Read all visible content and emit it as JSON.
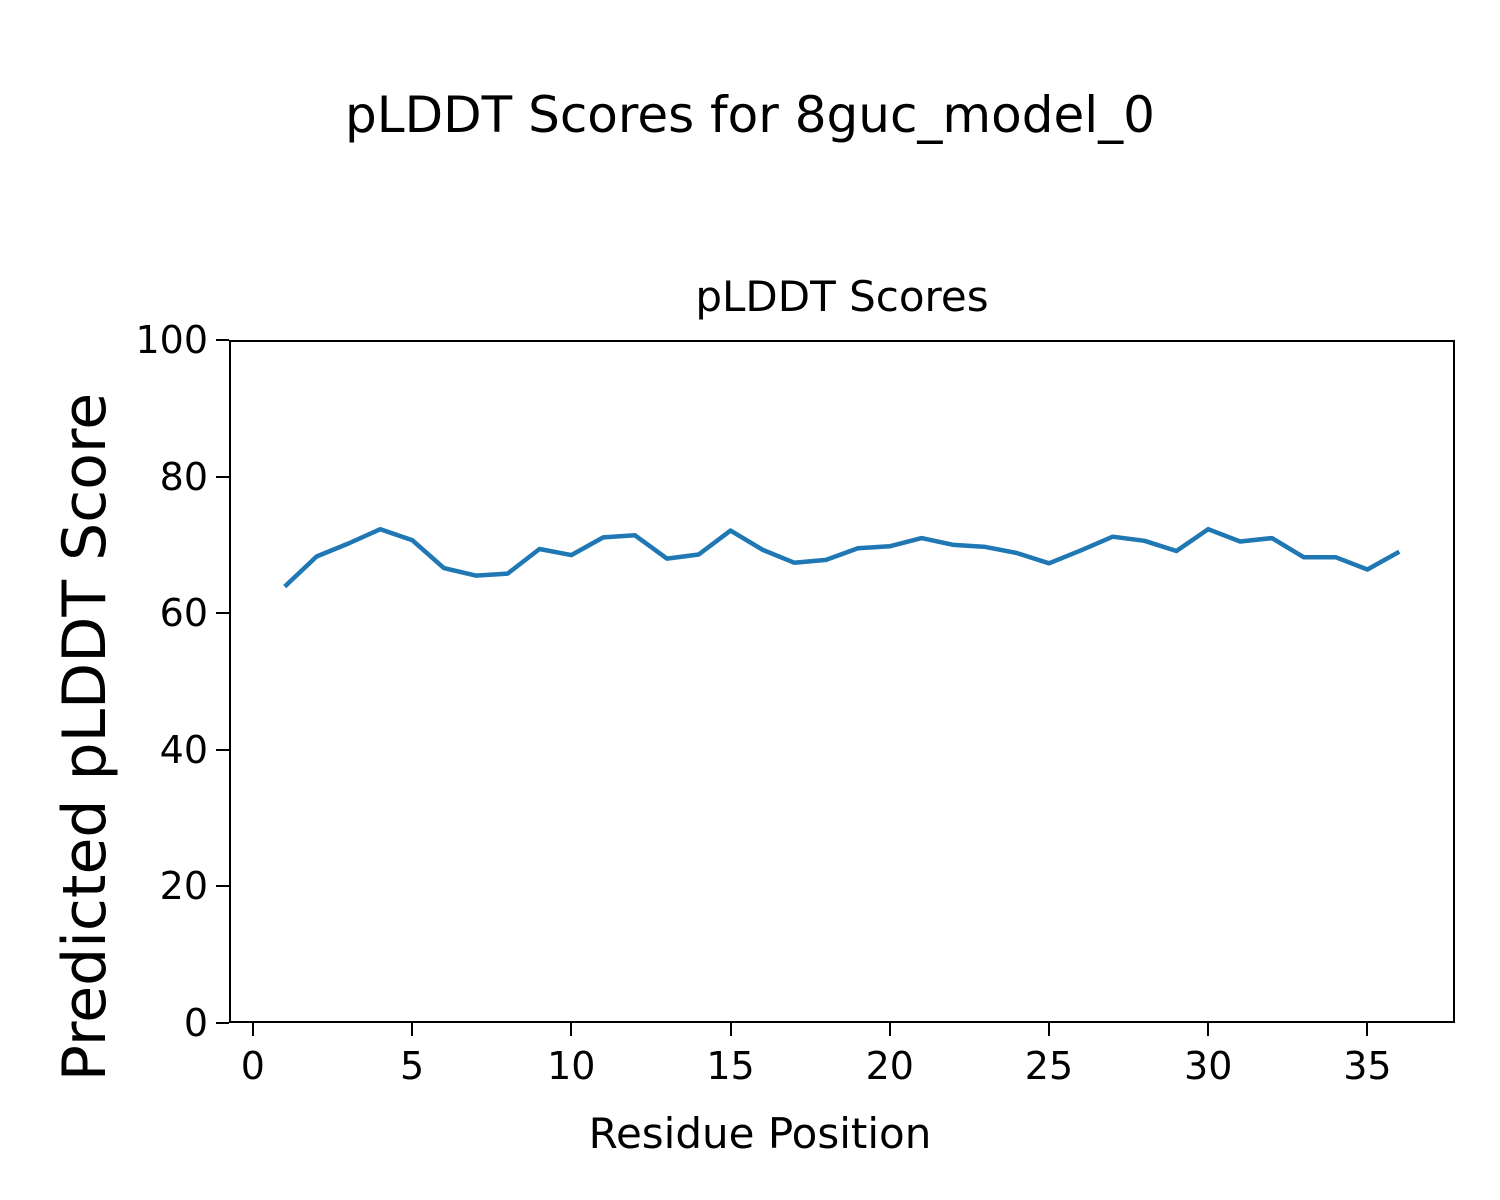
{
  "figure": {
    "title": "pLDDT Scores for 8guc_model_0"
  },
  "chart_data": {
    "type": "line",
    "title": "pLDDT Scores",
    "xlabel": "Residue Position",
    "ylabel": "Predicted pLDDT Score",
    "x": [
      1,
      2,
      3,
      4,
      5,
      6,
      7,
      8,
      9,
      10,
      11,
      12,
      13,
      14,
      15,
      16,
      17,
      18,
      19,
      20,
      21,
      22,
      23,
      24,
      25,
      26,
      27,
      28,
      29,
      30,
      31,
      32,
      33,
      34,
      35,
      36
    ],
    "series": [
      {
        "name": "pLDDT",
        "values": [
          63.9,
          68.3,
          70.2,
          72.3,
          70.7,
          66.6,
          65.5,
          65.8,
          69.4,
          68.5,
          71.1,
          71.4,
          68.0,
          68.6,
          72.1,
          69.3,
          67.4,
          67.8,
          69.5,
          69.8,
          71.0,
          70.0,
          69.7,
          68.8,
          67.3,
          69.2,
          71.2,
          70.6,
          69.1,
          72.3,
          70.5,
          71.0,
          68.2,
          68.2,
          66.4,
          69.0
        ]
      }
    ],
    "xlim": [
      -0.75,
      37.75
    ],
    "ylim": [
      0,
      100
    ],
    "xticks": [
      0,
      5,
      10,
      15,
      20,
      25,
      30,
      35
    ],
    "yticks": [
      0,
      20,
      40,
      60,
      80,
      100
    ],
    "line_color": "#1f77b4",
    "line_width": 4.5,
    "background": "#ffffff",
    "grid": false,
    "legend_position": "none"
  }
}
